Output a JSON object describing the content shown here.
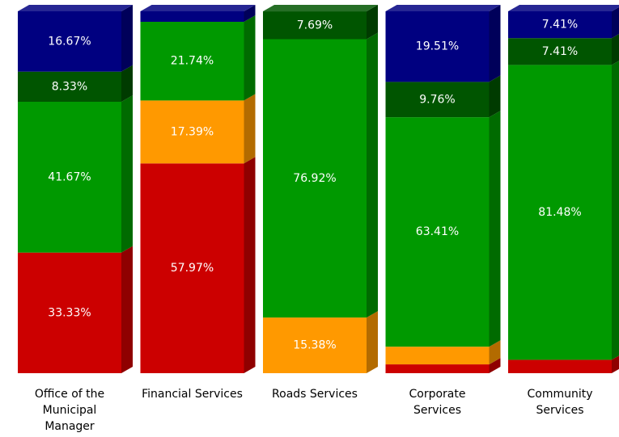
{
  "chart_data": {
    "type": "stacked_bar_3d",
    "categories": [
      "Office of the Municipal Manager",
      "Financial Services",
      "Roads Services",
      "Corporate Services",
      "Community Services"
    ],
    "ylim": [
      0,
      100
    ],
    "series": [
      {
        "color": "#cc0000",
        "values": [
          33.33,
          57.97,
          0,
          2.44,
          3.7
        ],
        "value_labels": [
          "33.33%",
          "57.97%",
          null,
          null,
          null
        ]
      },
      {
        "color": "#ff9900",
        "values": [
          0,
          17.39,
          15.38,
          4.88,
          0
        ],
        "value_labels": [
          null,
          "17.39%",
          "15.38%",
          null,
          null
        ]
      },
      {
        "color": "#009900",
        "values": [
          41.67,
          21.74,
          76.92,
          63.41,
          81.48
        ],
        "value_labels": [
          "41.67%",
          "21.74%",
          "76.92%",
          "63.41%",
          "81.48%"
        ]
      },
      {
        "color": "#005500",
        "values": [
          8.33,
          0,
          7.69,
          9.76,
          7.41
        ],
        "value_labels": [
          "8.33%",
          null,
          "7.69%",
          "9.76%",
          "7.41%"
        ]
      },
      {
        "color": "#000080",
        "values": [
          16.67,
          2.9,
          0,
          19.51,
          7.41
        ],
        "value_labels": [
          "16.67%",
          null,
          null,
          "19.51%",
          "7.41%"
        ]
      }
    ]
  }
}
